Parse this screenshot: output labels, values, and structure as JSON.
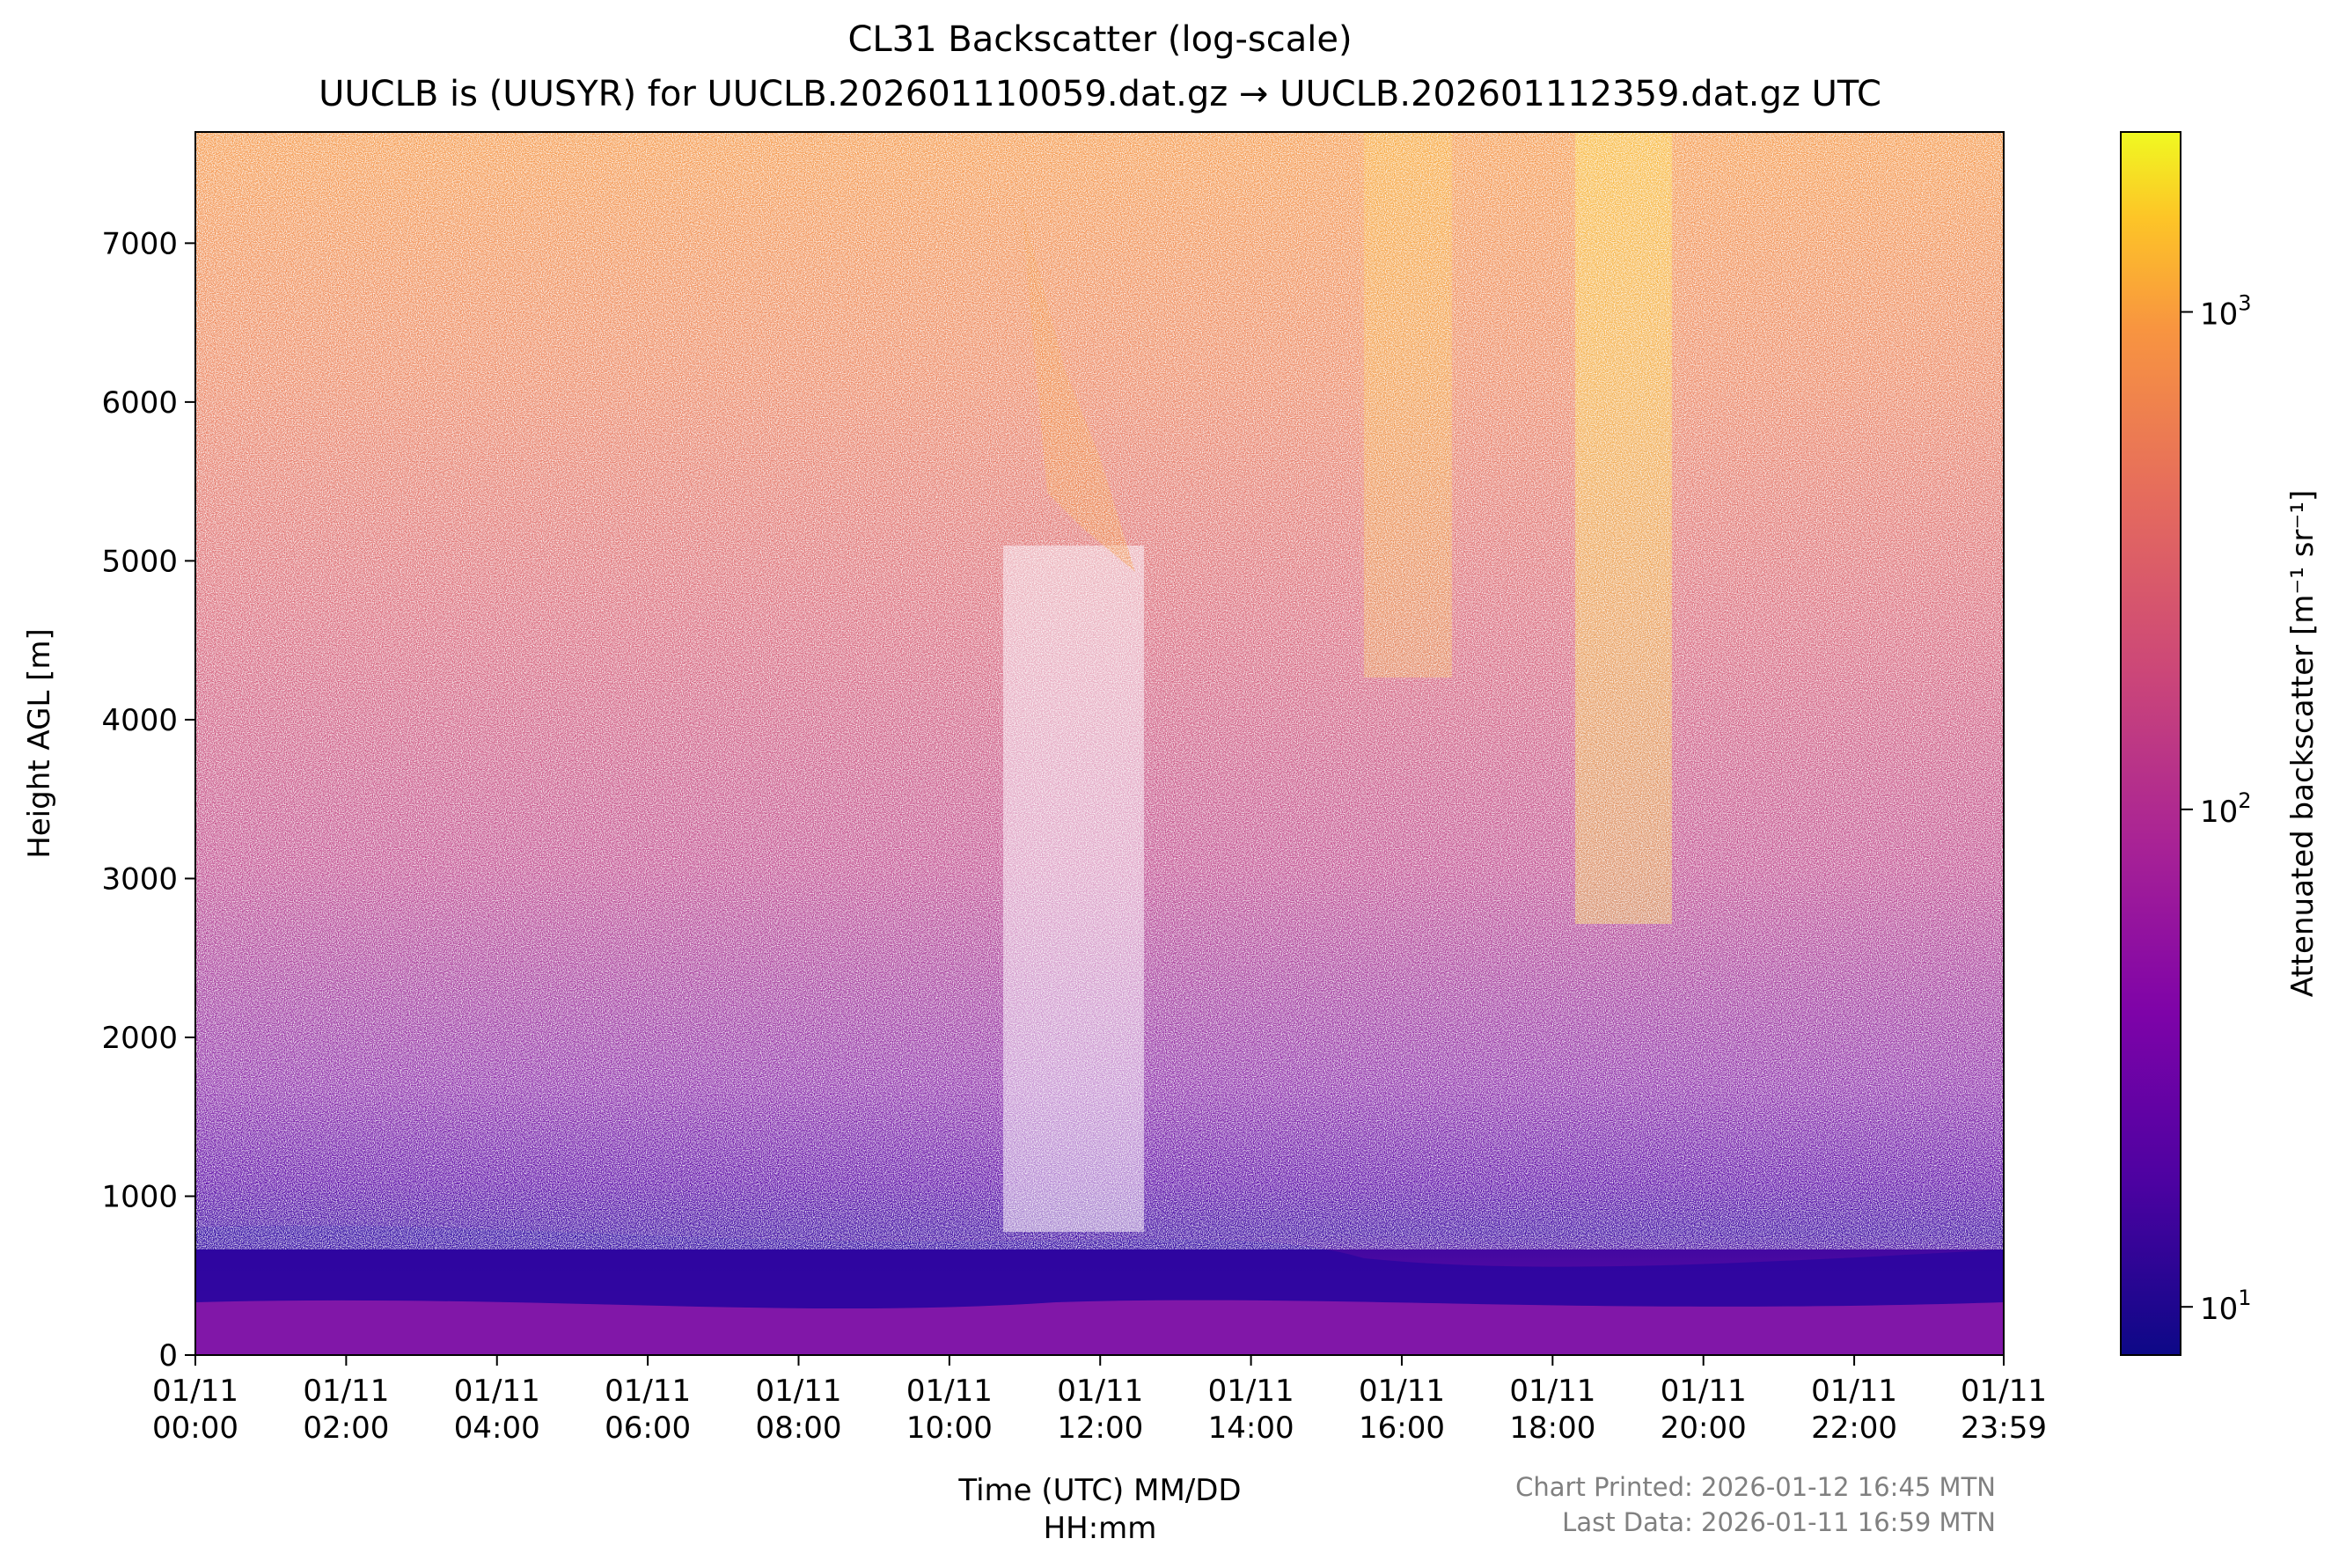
{
  "chart_data": {
    "type": "heatmap",
    "title": "CL31 Backscatter (log-scale)",
    "subtitle": "UUCLB is (UUSYR) for UUCLB.202601110059.dat.gz → UUCLB.202601112359.dat.gz UTC",
    "xlabel_line1": "Time (UTC) MM/DD",
    "xlabel_line2": "HH:mm",
    "ylabel": "Height AGL [m]",
    "ylim": [
      0,
      7700
    ],
    "yticks": [
      0,
      1000,
      2000,
      3000,
      4000,
      5000,
      6000,
      7000
    ],
    "xlim_hours": [
      0,
      23.983
    ],
    "xticks": [
      {
        "hour": 0,
        "date": "01/11",
        "time": "00:00"
      },
      {
        "hour": 2,
        "date": "01/11",
        "time": "02:00"
      },
      {
        "hour": 4,
        "date": "01/11",
        "time": "04:00"
      },
      {
        "hour": 6,
        "date": "01/11",
        "time": "06:00"
      },
      {
        "hour": 8,
        "date": "01/11",
        "time": "08:00"
      },
      {
        "hour": 10,
        "date": "01/11",
        "time": "10:00"
      },
      {
        "hour": 12,
        "date": "01/11",
        "time": "12:00"
      },
      {
        "hour": 14,
        "date": "01/11",
        "time": "14:00"
      },
      {
        "hour": 16,
        "date": "01/11",
        "time": "16:00"
      },
      {
        "hour": 18,
        "date": "01/11",
        "time": "18:00"
      },
      {
        "hour": 20,
        "date": "01/11",
        "time": "20:00"
      },
      {
        "hour": 22,
        "date": "01/11",
        "time": "22:00"
      },
      {
        "hour": 23.983,
        "date": "01/11",
        "time": "23:59"
      }
    ],
    "colorbar": {
      "label": "Attenuated backscatter [m⁻¹ sr⁻¹]",
      "scale": "log",
      "range": [
        8,
        2300
      ],
      "colormap": "plasma",
      "ticks": [
        {
          "value": 10,
          "base": "10",
          "exp": "1"
        },
        {
          "value": 100,
          "base": "10",
          "exp": "2"
        },
        {
          "value": 1000,
          "base": "10",
          "exp": "3"
        }
      ]
    },
    "grid": false,
    "colors": {
      "low": "#0d0887",
      "mid": "#9c179e",
      "high": "#fdca26",
      "max": "#f0f921"
    }
  },
  "footer": {
    "printed": "Chart Printed: 2026-01-12 16:45 MTN",
    "last_data": "Last Data: 2026-01-11 16:59 MTN"
  }
}
